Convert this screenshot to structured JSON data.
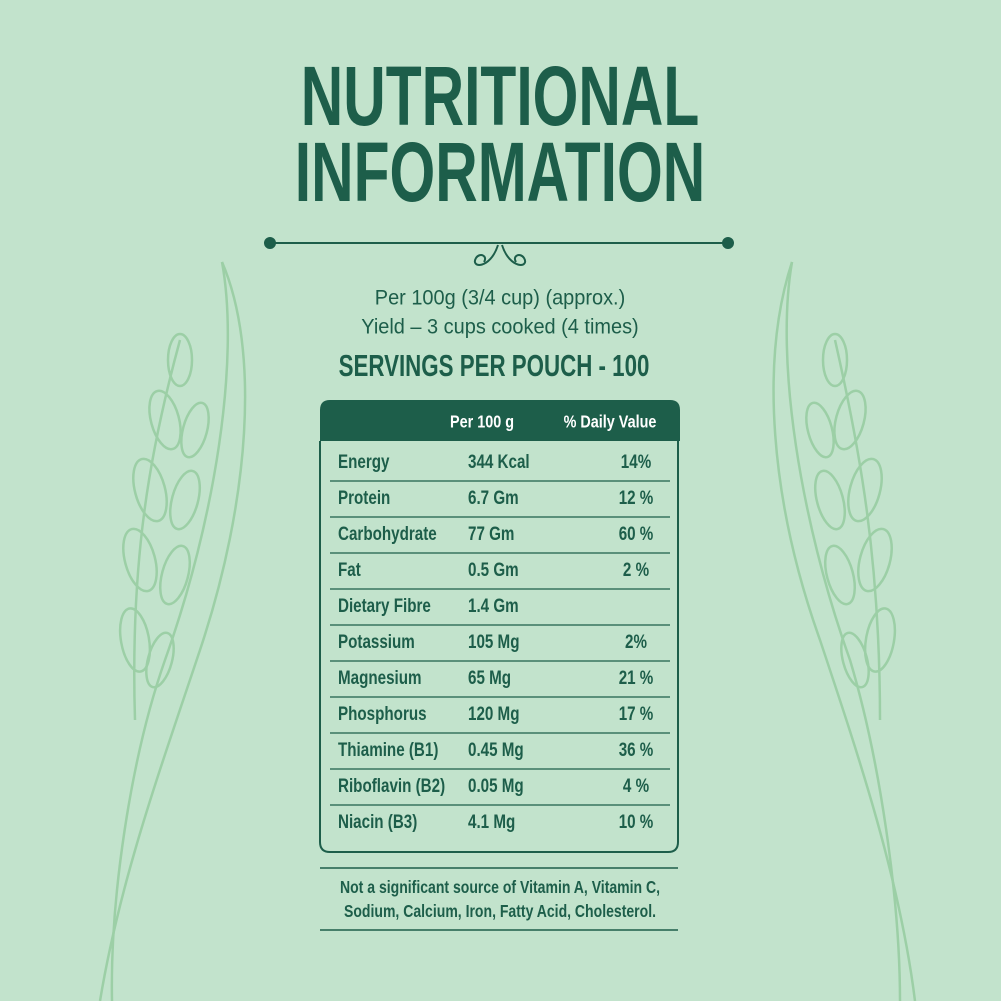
{
  "title_lines": [
    "NUTRITIONAL",
    "INFORMATION"
  ],
  "serving": {
    "per": "Per 100g (3/4 cup) (approx.)",
    "yield": "Yield – 3 cups cooked (4 times)",
    "servings": "SERVINGS PER POUCH - 100"
  },
  "table": {
    "header": [
      "Per 100 g",
      "% Daily Value"
    ],
    "rows": [
      [
        "Energy",
        "344 Kcal",
        "14%"
      ],
      [
        "Protein",
        "6.7 Gm",
        "12 %"
      ],
      [
        "Carbohydrate",
        "77 Gm",
        "60 %"
      ],
      [
        "Fat",
        "0.5 Gm",
        "2 %"
      ],
      [
        "Dietary Fibre",
        "1.4 Gm"
      ],
      [
        "Potassium",
        "105 Mg",
        "2%"
      ],
      [
        "Magnesium",
        "65 Mg",
        "21 %"
      ],
      [
        "Phosphorus",
        "120 Mg",
        "17 %"
      ],
      [
        "Thiamine (B1)",
        "0.45 Mg",
        "36 %"
      ],
      [
        "Riboflavin (B2)",
        "0.05 Mg",
        "4 %"
      ],
      [
        "Niacin (B3)",
        "4.1 Mg",
        "10 %"
      ]
    ]
  },
  "footnote_lines": [
    "Not a significant source of Vitamin A, Vitamin C,",
    "Sodium, Calcium, Iron, Fatty Acid, Cholesterol."
  ]
}
